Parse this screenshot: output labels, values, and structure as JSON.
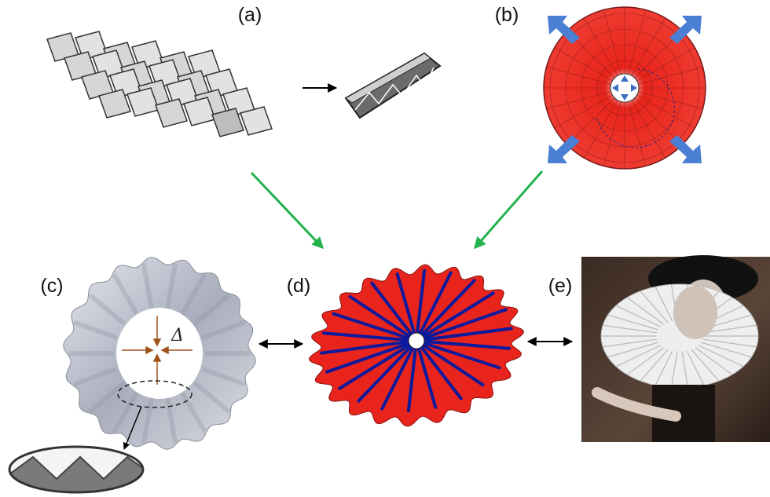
{
  "panels": {
    "a": {
      "label": "(a)"
    },
    "b": {
      "label": "(b)"
    },
    "c": {
      "label": "(c)",
      "symbol": "Δ"
    },
    "d": {
      "label": "(d)"
    },
    "e": {
      "label": "(e)"
    }
  },
  "colors": {
    "fold_red": "#e8241c",
    "fold_blue": "#0d1a9c",
    "arrow_green": "#22b14c",
    "arrow_blue": "#4a7fd4",
    "inward_arrow": "#a0521c",
    "gray_fold": "#c9ccd6"
  },
  "rays": 22
}
